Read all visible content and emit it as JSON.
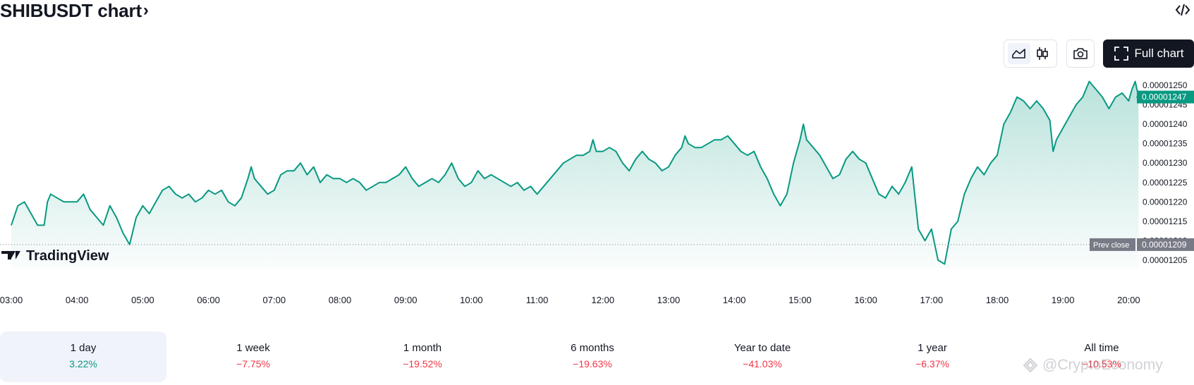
{
  "header": {
    "title": "SHIBUSDT chart",
    "title_chevron": "›",
    "embed_icon": "code-brackets-icon"
  },
  "toolbar": {
    "area_icon": "area-chart-icon",
    "candles_icon": "candlestick-icon",
    "camera_icon": "camera-icon",
    "full_chart_icon": "fullscreen-icon",
    "full_chart_label": "Full chart"
  },
  "chart_data": {
    "type": "area",
    "symbol": "SHIBUSDT",
    "x_ticks": [
      "03:00",
      "04:00",
      "05:00",
      "06:00",
      "07:00",
      "08:00",
      "09:00",
      "10:00",
      "11:00",
      "12:00",
      "13:00",
      "14:00",
      "15:00",
      "16:00",
      "17:00",
      "18:00",
      "19:00",
      "20:00"
    ],
    "y_ticks": [
      "0.00001250",
      "0.00001245",
      "0.00001240",
      "0.00001235",
      "0.00001230",
      "0.00001225",
      "0.00001220",
      "0.00001215",
      "0.00001210",
      "0.00001205"
    ],
    "ylim": [
      1.203e-05,
      1.252e-05
    ],
    "x_range_hours": [
      3.0,
      20.2
    ],
    "series": [
      {
        "points": [
          [
            3.0,
            1.214e-05
          ],
          [
            3.1,
            1.219e-05
          ],
          [
            3.2,
            1.22e-05
          ],
          [
            3.3,
            1.217e-05
          ],
          [
            3.4,
            1.214e-05
          ],
          [
            3.5,
            1.214e-05
          ],
          [
            3.55,
            1.22e-05
          ],
          [
            3.6,
            1.222e-05
          ],
          [
            3.7,
            1.221e-05
          ],
          [
            3.8,
            1.22e-05
          ],
          [
            3.9,
            1.22e-05
          ],
          [
            4.0,
            1.22e-05
          ],
          [
            4.1,
            1.222e-05
          ],
          [
            4.2,
            1.218e-05
          ],
          [
            4.3,
            1.216e-05
          ],
          [
            4.4,
            1.214e-05
          ],
          [
            4.5,
            1.219e-05
          ],
          [
            4.6,
            1.216e-05
          ],
          [
            4.7,
            1.212e-05
          ],
          [
            4.8,
            1.209e-05
          ],
          [
            4.9,
            1.216e-05
          ],
          [
            5.0,
            1.219e-05
          ],
          [
            5.1,
            1.217e-05
          ],
          [
            5.2,
            1.22e-05
          ],
          [
            5.3,
            1.223e-05
          ],
          [
            5.4,
            1.224e-05
          ],
          [
            5.5,
            1.222e-05
          ],
          [
            5.6,
            1.221e-05
          ],
          [
            5.7,
            1.222e-05
          ],
          [
            5.8,
            1.22e-05
          ],
          [
            5.9,
            1.221e-05
          ],
          [
            6.0,
            1.223e-05
          ],
          [
            6.1,
            1.222e-05
          ],
          [
            6.2,
            1.223e-05
          ],
          [
            6.3,
            1.22e-05
          ],
          [
            6.4,
            1.219e-05
          ],
          [
            6.5,
            1.221e-05
          ],
          [
            6.6,
            1.226e-05
          ],
          [
            6.65,
            1.229e-05
          ],
          [
            6.7,
            1.226e-05
          ],
          [
            6.8,
            1.224e-05
          ],
          [
            6.9,
            1.222e-05
          ],
          [
            7.0,
            1.223e-05
          ],
          [
            7.1,
            1.227e-05
          ],
          [
            7.2,
            1.228e-05
          ],
          [
            7.3,
            1.228e-05
          ],
          [
            7.4,
            1.23e-05
          ],
          [
            7.5,
            1.227e-05
          ],
          [
            7.6,
            1.229e-05
          ],
          [
            7.7,
            1.225e-05
          ],
          [
            7.8,
            1.227e-05
          ],
          [
            7.9,
            1.226e-05
          ],
          [
            8.0,
            1.226e-05
          ],
          [
            8.1,
            1.225e-05
          ],
          [
            8.2,
            1.226e-05
          ],
          [
            8.3,
            1.225e-05
          ],
          [
            8.4,
            1.223e-05
          ],
          [
            8.5,
            1.224e-05
          ],
          [
            8.6,
            1.225e-05
          ],
          [
            8.7,
            1.225e-05
          ],
          [
            8.8,
            1.226e-05
          ],
          [
            8.9,
            1.227e-05
          ],
          [
            9.0,
            1.229e-05
          ],
          [
            9.1,
            1.226e-05
          ],
          [
            9.2,
            1.224e-05
          ],
          [
            9.3,
            1.225e-05
          ],
          [
            9.4,
            1.226e-05
          ],
          [
            9.5,
            1.225e-05
          ],
          [
            9.6,
            1.227e-05
          ],
          [
            9.7,
            1.23e-05
          ],
          [
            9.8,
            1.226e-05
          ],
          [
            9.9,
            1.224e-05
          ],
          [
            10.0,
            1.225e-05
          ],
          [
            10.1,
            1.228e-05
          ],
          [
            10.2,
            1.226e-05
          ],
          [
            10.3,
            1.227e-05
          ],
          [
            10.4,
            1.226e-05
          ],
          [
            10.5,
            1.225e-05
          ],
          [
            10.6,
            1.224e-05
          ],
          [
            10.7,
            1.225e-05
          ],
          [
            10.8,
            1.223e-05
          ],
          [
            10.9,
            1.224e-05
          ],
          [
            11.0,
            1.222e-05
          ],
          [
            11.1,
            1.224e-05
          ],
          [
            11.2,
            1.226e-05
          ],
          [
            11.3,
            1.228e-05
          ],
          [
            11.4,
            1.23e-05
          ],
          [
            11.5,
            1.231e-05
          ],
          [
            11.6,
            1.232e-05
          ],
          [
            11.7,
            1.232e-05
          ],
          [
            11.8,
            1.233e-05
          ],
          [
            11.85,
            1.236e-05
          ],
          [
            11.9,
            1.233e-05
          ],
          [
            12.0,
            1.233e-05
          ],
          [
            12.1,
            1.234e-05
          ],
          [
            12.2,
            1.233e-05
          ],
          [
            12.3,
            1.23e-05
          ],
          [
            12.4,
            1.228e-05
          ],
          [
            12.5,
            1.231e-05
          ],
          [
            12.6,
            1.233e-05
          ],
          [
            12.7,
            1.231e-05
          ],
          [
            12.8,
            1.23e-05
          ],
          [
            12.9,
            1.228e-05
          ],
          [
            13.0,
            1.229e-05
          ],
          [
            13.1,
            1.232e-05
          ],
          [
            13.2,
            1.234e-05
          ],
          [
            13.25,
            1.237e-05
          ],
          [
            13.3,
            1.235e-05
          ],
          [
            13.4,
            1.234e-05
          ],
          [
            13.5,
            1.234e-05
          ],
          [
            13.6,
            1.235e-05
          ],
          [
            13.7,
            1.236e-05
          ],
          [
            13.8,
            1.236e-05
          ],
          [
            13.9,
            1.237e-05
          ],
          [
            14.0,
            1.235e-05
          ],
          [
            14.1,
            1.233e-05
          ],
          [
            14.2,
            1.232e-05
          ],
          [
            14.3,
            1.233e-05
          ],
          [
            14.4,
            1.229e-05
          ],
          [
            14.5,
            1.226e-05
          ],
          [
            14.6,
            1.222e-05
          ],
          [
            14.7,
            1.219e-05
          ],
          [
            14.8,
            1.222e-05
          ],
          [
            14.9,
            1.23e-05
          ],
          [
            15.0,
            1.236e-05
          ],
          [
            15.05,
            1.24e-05
          ],
          [
            15.1,
            1.236e-05
          ],
          [
            15.2,
            1.234e-05
          ],
          [
            15.3,
            1.232e-05
          ],
          [
            15.4,
            1.229e-05
          ],
          [
            15.5,
            1.226e-05
          ],
          [
            15.6,
            1.227e-05
          ],
          [
            15.7,
            1.231e-05
          ],
          [
            15.8,
            1.233e-05
          ],
          [
            15.9,
            1.231e-05
          ],
          [
            16.0,
            1.23e-05
          ],
          [
            16.1,
            1.226e-05
          ],
          [
            16.2,
            1.222e-05
          ],
          [
            16.3,
            1.221e-05
          ],
          [
            16.4,
            1.224e-05
          ],
          [
            16.5,
            1.222e-05
          ],
          [
            16.6,
            1.225e-05
          ],
          [
            16.7,
            1.229e-05
          ],
          [
            16.8,
            1.213e-05
          ],
          [
            16.9,
            1.21e-05
          ],
          [
            17.0,
            1.213e-05
          ],
          [
            17.1,
            1.205e-05
          ],
          [
            17.2,
            1.204e-05
          ],
          [
            17.3,
            1.213e-05
          ],
          [
            17.4,
            1.215e-05
          ],
          [
            17.5,
            1.222e-05
          ],
          [
            17.6,
            1.226e-05
          ],
          [
            17.7,
            1.229e-05
          ],
          [
            17.8,
            1.227e-05
          ],
          [
            17.9,
            1.23e-05
          ],
          [
            18.0,
            1.232e-05
          ],
          [
            18.1,
            1.24e-05
          ],
          [
            18.2,
            1.243e-05
          ],
          [
            18.3,
            1.247e-05
          ],
          [
            18.4,
            1.246e-05
          ],
          [
            18.5,
            1.244e-05
          ],
          [
            18.6,
            1.246e-05
          ],
          [
            18.7,
            1.244e-05
          ],
          [
            18.8,
            1.241e-05
          ],
          [
            18.85,
            1.233e-05
          ],
          [
            18.9,
            1.236e-05
          ],
          [
            19.0,
            1.239e-05
          ],
          [
            19.1,
            1.242e-05
          ],
          [
            19.2,
            1.245e-05
          ],
          [
            19.3,
            1.247e-05
          ],
          [
            19.4,
            1.251e-05
          ],
          [
            19.5,
            1.249e-05
          ],
          [
            19.6,
            1.247e-05
          ],
          [
            19.7,
            1.244e-05
          ],
          [
            19.8,
            1.247e-05
          ],
          [
            19.9,
            1.248e-05
          ],
          [
            20.0,
            1.246e-05
          ],
          [
            20.05,
            1.249e-05
          ],
          [
            20.1,
            1.251e-05
          ],
          [
            20.15,
            1.247e-05
          ]
        ]
      }
    ],
    "last_price": {
      "label": "0.00001247",
      "value": 1.247e-05
    },
    "prev_close": {
      "label": "Prev close",
      "value_label": "0.00001209",
      "value": 1.209e-05
    },
    "colors": {
      "line": "#089981",
      "fill_top": "#089981",
      "last_price_bg": "#089981",
      "prev_close_bg": "#787b86"
    },
    "grid": false,
    "logo_text": "TradingView"
  },
  "periods": [
    {
      "label": "1 day",
      "value": "3.22%",
      "direction": "up",
      "active": true
    },
    {
      "label": "1 week",
      "value": "−7.75%",
      "direction": "down",
      "active": false
    },
    {
      "label": "1 month",
      "value": "−19.52%",
      "direction": "down",
      "active": false
    },
    {
      "label": "6 months",
      "value": "−19.63%",
      "direction": "down",
      "active": false
    },
    {
      "label": "Year to date",
      "value": "−41.03%",
      "direction": "down",
      "active": false
    },
    {
      "label": "1 year",
      "value": "−6.37%",
      "direction": "down",
      "active": false
    },
    {
      "label": "All time",
      "value": "−10.53%",
      "direction": "down",
      "active": false
    }
  ],
  "watermark": {
    "text": "@CryptoEconomy",
    "icon": "cryptoeconomy-logo-icon"
  }
}
